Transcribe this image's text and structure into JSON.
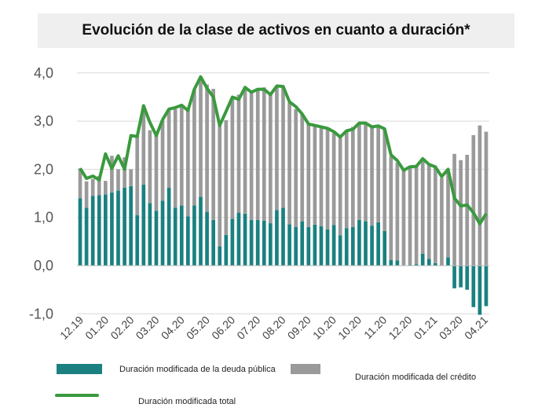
{
  "chart_data": {
    "type": "bar",
    "title": "Evolución de la clase de activos en cuanto a duración*",
    "ylim": [
      -1.0,
      4.0
    ],
    "yticks": [
      "-1,0",
      "0,0",
      "1,0",
      "2,0",
      "3,0",
      "4,0"
    ],
    "ytick_values": [
      -1,
      0,
      1,
      2,
      3,
      4
    ],
    "xtick_labels": [
      "12.19",
      "01.20",
      "02.20",
      "03.20",
      "04.20",
      "05.20",
      "06.20",
      "07.20",
      "08.20",
      "09.20",
      "10.20",
      "10.20",
      "11.20",
      "12.20",
      "01.21",
      "03.20",
      "04.21"
    ],
    "series": [
      {
        "name": "Duración modificada de la deuda pública",
        "color": "#1a8080",
        "values": [
          1.4,
          1.2,
          1.45,
          1.46,
          1.48,
          1.52,
          1.56,
          1.62,
          1.65,
          1.05,
          1.68,
          1.3,
          1.14,
          1.35,
          1.62,
          1.2,
          1.25,
          1.02,
          1.25,
          1.43,
          1.12,
          0.95,
          0.4,
          0.64,
          0.97,
          1.1,
          1.08,
          0.95,
          0.95,
          0.93,
          0.88,
          1.15,
          1.2,
          0.86,
          0.8,
          0.92,
          0.8,
          0.85,
          0.82,
          0.75,
          0.84,
          0.63,
          0.78,
          0.8,
          0.95,
          0.92,
          0.83,
          0.9,
          0.72,
          0.12,
          0.11,
          0.0,
          0.02,
          0.03,
          0.25,
          0.14,
          0.05,
          0.0,
          0.17,
          -0.47,
          -0.45,
          -0.5,
          -0.86,
          -1.02,
          -0.84
        ]
      },
      {
        "name": "Duración modificada del crédito",
        "color": "#9a9a9a",
        "values": [
          0.62,
          0.55,
          0.35,
          0.4,
          0.28,
          0.76,
          0.44,
          0.63,
          0.35,
          1.64,
          1.64,
          1.51,
          1.56,
          1.66,
          1.63,
          2.05,
          2.06,
          2.25,
          2.4,
          2.49,
          2.64,
          2.72,
          2.51,
          2.38,
          2.53,
          2.45,
          2.61,
          2.64,
          2.7,
          2.77,
          2.69,
          2.58,
          2.53,
          2.52,
          2.45,
          2.22,
          2.14,
          2.06,
          2.03,
          2.08,
          1.91,
          2.04,
          2.02,
          2.08,
          2.0,
          2.05,
          2.07,
          1.98,
          2.1,
          2.15,
          2.03,
          1.97,
          2.05,
          2.03,
          1.96,
          1.95,
          2.0,
          1.82,
          1.82,
          2.32,
          2.19,
          2.3,
          2.71,
          2.91,
          2.78
        ]
      },
      {
        "name": "Duración modificada total",
        "color": "#3a9a3e",
        "type": "line",
        "values": [
          2.02,
          1.81,
          1.86,
          1.78,
          2.32,
          2.02,
          2.28,
          2.0,
          2.7,
          2.68,
          3.32,
          2.97,
          2.7,
          3.03,
          3.25,
          3.28,
          3.33,
          3.22,
          3.66,
          3.92,
          3.68,
          3.5,
          2.91,
          3.2,
          3.5,
          3.45,
          3.7,
          3.6,
          3.66,
          3.66,
          3.55,
          3.73,
          3.72,
          3.4,
          3.3,
          3.15,
          2.94,
          2.91,
          2.88,
          2.85,
          2.78,
          2.67,
          2.8,
          2.83,
          2.96,
          2.96,
          2.88,
          2.9,
          2.84,
          2.3,
          2.18,
          1.98,
          2.05,
          2.06,
          2.22,
          2.1,
          2.05,
          1.85,
          2.0,
          1.4,
          1.24,
          1.26,
          1.1,
          0.87,
          1.08
        ]
      }
    ],
    "grid": "horizontal",
    "legend_position": "bottom"
  },
  "colors": {
    "title_background": "#efefef",
    "grid": "#d9d9d9"
  }
}
